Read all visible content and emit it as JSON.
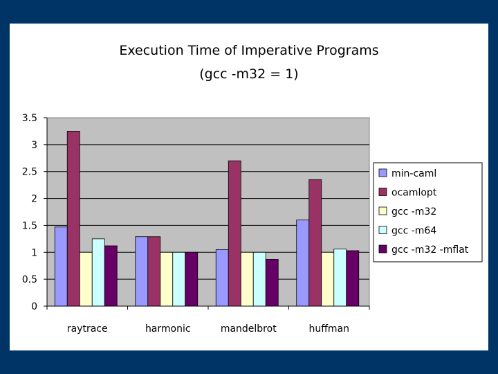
{
  "chart_data": {
    "type": "bar",
    "title": "Execution Time of Imperative Programs",
    "subtitle": "(gcc -m32 = 1)",
    "xlabel": "",
    "ylabel": "",
    "categories": [
      "raytrace",
      "harmonic",
      "mandelbrot",
      "huffman"
    ],
    "series": [
      {
        "name": "min-caml",
        "color": "#9999ff",
        "values": [
          1.47,
          1.29,
          1.05,
          1.6
        ]
      },
      {
        "name": "ocamlopt",
        "color": "#993366",
        "values": [
          3.25,
          1.29,
          2.7,
          2.35
        ]
      },
      {
        "name": "gcc -m32",
        "color": "#ffffcc",
        "values": [
          1.0,
          1.0,
          1.0,
          1.0
        ]
      },
      {
        "name": "gcc -m64",
        "color": "#ccffff",
        "values": [
          1.25,
          1.0,
          1.0,
          1.06
        ]
      },
      {
        "name": "gcc -m32 -mflat",
        "color": "#660066",
        "values": [
          1.12,
          1.0,
          0.87,
          1.03
        ]
      }
    ],
    "ylim": [
      0,
      3.5
    ],
    "yticks": [
      "0",
      "0.5",
      "1",
      "1.5",
      "2",
      "2.5",
      "3",
      "3.5"
    ],
    "grid": true,
    "legend_position": "right",
    "plot_background": "#c0c0c0"
  }
}
